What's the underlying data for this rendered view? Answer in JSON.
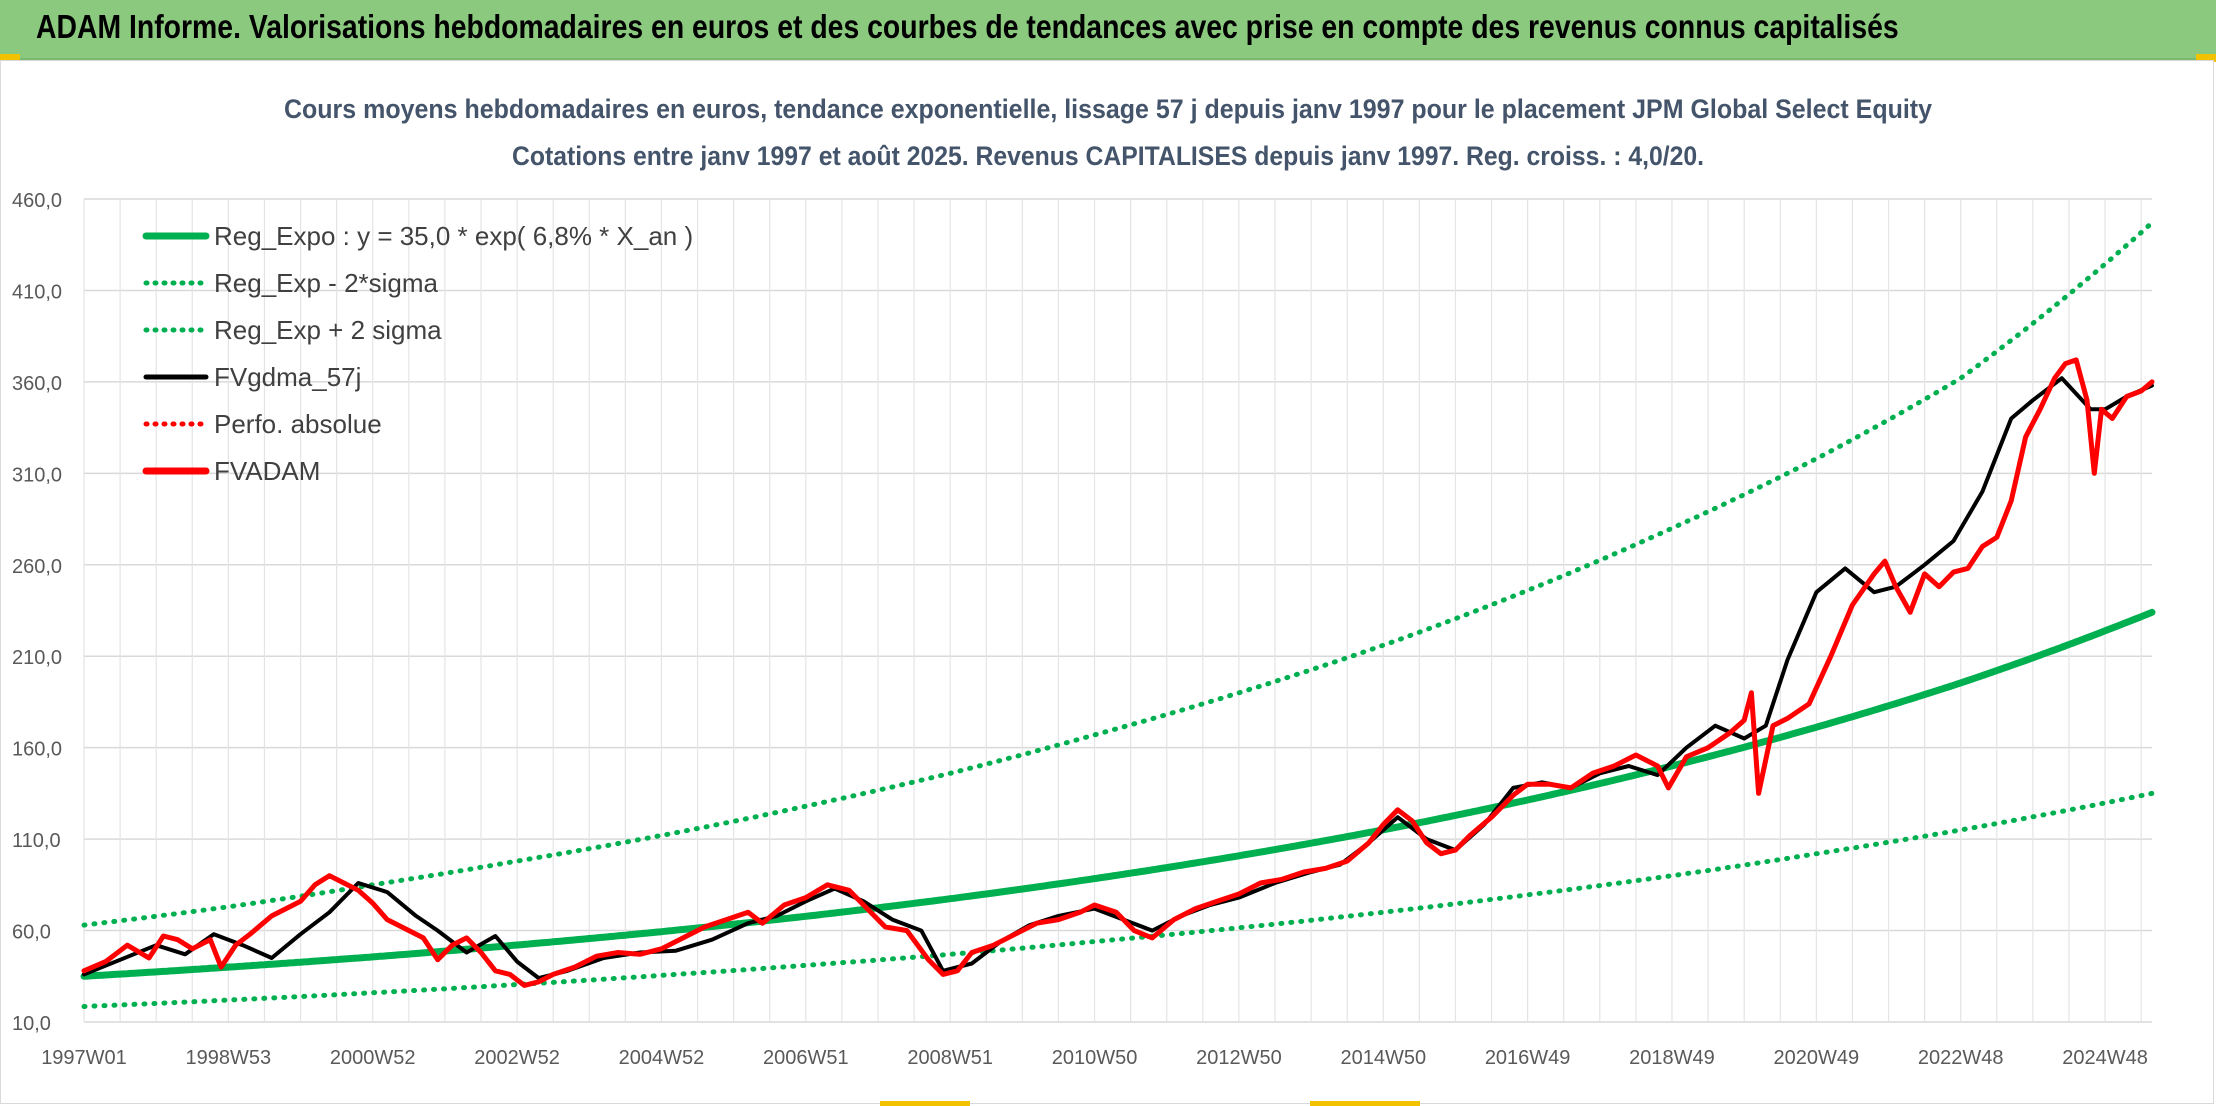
{
  "header": {
    "title": "ADAM Informe. Valorisations hebdomadaires en euros et des courbes de tendances avec prise en compte des revenus connus capitalisés"
  },
  "chart_data": {
    "type": "line",
    "title": "Cours moyens hebdomadaires en euros, tendance exponentielle, lissage 57 j depuis janv 1997 pour le placement JPM Global Select Equity",
    "subtitle": "Cotations entre janv 1997 et août 2025. Revenus CAPITALISES depuis janv 1997. Reg. croiss. : 4,0/20.",
    "xlabel": "",
    "ylabel": "",
    "ylim": [
      10,
      460
    ],
    "xlim": [
      1997.0,
      2025.65
    ],
    "y_ticks": [
      "460,0",
      "410,0",
      "360,0",
      "310,0",
      "260,0",
      "210,0",
      "160,0",
      "110,0",
      "60,0",
      "10,0"
    ],
    "x_ticks": [
      {
        "label": "1997W01",
        "x": 1997.0
      },
      {
        "label": "1998W53",
        "x": 1999.0
      },
      {
        "label": "2000W52",
        "x": 2001.0
      },
      {
        "label": "2002W52",
        "x": 2003.0
      },
      {
        "label": "2004W52",
        "x": 2005.0
      },
      {
        "label": "2006W51",
        "x": 2007.0
      },
      {
        "label": "2008W51",
        "x": 2009.0
      },
      {
        "label": "2010W50",
        "x": 2011.0
      },
      {
        "label": "2012W50",
        "x": 2013.0
      },
      {
        "label": "2014W50",
        "x": 2015.0
      },
      {
        "label": "2016W49",
        "x": 2017.0
      },
      {
        "label": "2018W49",
        "x": 2019.0
      },
      {
        "label": "2020W49",
        "x": 2021.0
      },
      {
        "label": "2022W48",
        "x": 2023.0
      },
      {
        "label": "2024W48",
        "x": 2025.0
      }
    ],
    "grid": true,
    "legend_position": "top-left",
    "series": [
      {
        "name": "Reg_Expo : y = 35,0 * exp( 6,8% *  X_an )",
        "style": "solid-thick",
        "color": "#00b050",
        "x": [
          1997.0,
          1999.0,
          2001.0,
          2003.0,
          2005.0,
          2007.0,
          2009.0,
          2011.0,
          2013.0,
          2015.0,
          2017.0,
          2019.0,
          2021.0,
          2023.0,
          2025.65
        ],
        "y": [
          35.0,
          40.0,
          45.6,
          52.1,
          59.4,
          67.8,
          77.4,
          88.4,
          100.9,
          115.1,
          131.4,
          150.0,
          171.2,
          195.4,
          234.0
        ]
      },
      {
        "name": "Reg_Exp - 2*sigma",
        "style": "dotted",
        "color": "#00b050",
        "x": [
          1997.0,
          1999.0,
          2001.0,
          2003.0,
          2005.0,
          2007.0,
          2009.0,
          2011.0,
          2013.0,
          2015.0,
          2017.0,
          2019.0,
          2021.0,
          2023.0,
          2025.65
        ],
        "y": [
          18.5,
          22.0,
          26.0,
          30.5,
          35.5,
          41.0,
          47.0,
          54.0,
          61.5,
          70.0,
          79.5,
          90.0,
          102.0,
          115.0,
          135.0
        ]
      },
      {
        "name": "Reg_Exp + 2 sigma",
        "style": "dotted",
        "color": "#00b050",
        "x": [
          1997.0,
          1999.0,
          2001.0,
          2003.0,
          2005.0,
          2007.0,
          2009.0,
          2011.0,
          2013.0,
          2015.0,
          2017.0,
          2019.0,
          2021.0,
          2023.0,
          2025.65
        ],
        "y": [
          63.0,
          73.0,
          85.0,
          98.0,
          112.0,
          128.0,
          146.0,
          167.0,
          190.0,
          216.0,
          246.0,
          280.0,
          318.0,
          362.0,
          447.0
        ]
      },
      {
        "name": "FVgdma_57j",
        "style": "solid",
        "color": "#000000",
        "x": [
          1997.0,
          1997.5,
          1998.0,
          1998.4,
          1998.8,
          1999.2,
          1999.6,
          2000.0,
          2000.4,
          2000.8,
          2001.2,
          2001.6,
          2001.9,
          2002.3,
          2002.7,
          2003.0,
          2003.3,
          2003.7,
          2004.2,
          2004.7,
          2005.2,
          2005.7,
          2006.2,
          2006.6,
          2007.0,
          2007.4,
          2007.8,
          2008.2,
          2008.6,
          2008.9,
          2009.3,
          2009.7,
          2010.1,
          2010.5,
          2011.0,
          2011.4,
          2011.8,
          2012.2,
          2012.6,
          2013.0,
          2013.5,
          2014.0,
          2014.4,
          2014.8,
          2015.2,
          2015.6,
          2016.0,
          2016.4,
          2016.8,
          2017.2,
          2017.6,
          2018.0,
          2018.4,
          2018.8,
          2019.2,
          2019.6,
          2020.0,
          2020.3,
          2020.6,
          2021.0,
          2021.4,
          2021.8,
          2022.1,
          2022.5,
          2022.9,
          2023.3,
          2023.7,
          2024.0,
          2024.4,
          2024.8,
          2025.0,
          2025.3,
          2025.65
        ],
        "y": [
          36,
          44,
          52,
          47,
          58,
          52,
          45,
          58,
          70,
          86,
          81,
          68,
          60,
          48,
          57,
          43,
          34,
          38,
          45,
          48,
          49,
          55,
          64,
          68,
          76,
          83,
          76,
          66,
          60,
          38,
          42,
          54,
          63,
          68,
          72,
          66,
          60,
          68,
          74,
          78,
          86,
          92,
          96,
          108,
          122,
          110,
          104,
          118,
          138,
          141,
          138,
          146,
          150,
          145,
          160,
          172,
          165,
          172,
          208,
          245,
          258,
          245,
          248,
          260,
          273,
          300,
          340,
          350,
          362,
          345,
          345,
          352,
          358
        ]
      },
      {
        "name": "Perfo. absolue",
        "style": "dotted",
        "color": "#ff0000",
        "x": [],
        "y": []
      },
      {
        "name": "FVADAM",
        "style": "solid-thick",
        "color": "#ff0000",
        "x": [
          1997.0,
          1997.3,
          1997.6,
          1997.9,
          1998.1,
          1998.3,
          1998.5,
          1998.75,
          1998.9,
          1999.1,
          1999.3,
          1999.6,
          1999.8,
          2000.0,
          2000.2,
          2000.4,
          2000.6,
          2000.8,
          2001.0,
          2001.2,
          2001.4,
          2001.7,
          2001.9,
          2002.1,
          2002.3,
          2002.5,
          2002.7,
          2002.9,
          2003.1,
          2003.3,
          2003.5,
          2003.8,
          2004.1,
          2004.4,
          2004.7,
          2005.0,
          2005.3,
          2005.6,
          2005.9,
          2006.2,
          2006.4,
          2006.7,
          2007.0,
          2007.3,
          2007.6,
          2007.8,
          2008.1,
          2008.4,
          2008.7,
          2008.9,
          2009.1,
          2009.3,
          2009.6,
          2009.9,
          2010.2,
          2010.5,
          2010.8,
          2011.0,
          2011.3,
          2011.55,
          2011.8,
          2012.1,
          2012.4,
          2012.7,
          2013.0,
          2013.3,
          2013.6,
          2013.9,
          2014.2,
          2014.5,
          2014.8,
          2015.0,
          2015.2,
          2015.4,
          2015.6,
          2015.8,
          2016.0,
          2016.2,
          2016.5,
          2016.8,
          2017.0,
          2017.3,
          2017.6,
          2017.9,
          2018.2,
          2018.5,
          2018.8,
          2018.95,
          2019.2,
          2019.5,
          2019.8,
          2020.0,
          2020.1,
          2020.2,
          2020.4,
          2020.6,
          2020.9,
          2021.2,
          2021.5,
          2021.8,
          2021.95,
          2022.1,
          2022.3,
          2022.5,
          2022.7,
          2022.9,
          2023.1,
          2023.3,
          2023.5,
          2023.7,
          2023.9,
          2024.1,
          2024.3,
          2024.45,
          2024.6,
          2024.75,
          2024.85,
          2024.95,
          2025.1,
          2025.3,
          2025.5,
          2025.65
        ],
        "y": [
          38,
          43,
          52,
          45,
          57,
          55,
          50,
          55,
          40,
          52,
          58,
          68,
          72,
          76,
          85,
          90,
          86,
          82,
          75,
          66,
          62,
          56,
          44,
          52,
          56,
          48,
          38,
          36,
          30,
          32,
          36,
          40,
          46,
          48,
          47,
          50,
          56,
          62,
          66,
          70,
          64,
          74,
          78,
          85,
          82,
          74,
          62,
          60,
          44,
          36,
          38,
          48,
          52,
          58,
          64,
          66,
          70,
          74,
          70,
          60,
          56,
          66,
          72,
          76,
          80,
          86,
          88,
          92,
          94,
          98,
          108,
          118,
          126,
          120,
          108,
          102,
          104,
          112,
          122,
          134,
          140,
          140,
          138,
          146,
          150,
          156,
          150,
          138,
          155,
          160,
          168,
          175,
          190,
          135,
          172,
          176,
          184,
          210,
          238,
          255,
          262,
          248,
          234,
          255,
          248,
          256,
          258,
          270,
          275,
          295,
          330,
          345,
          362,
          370,
          372,
          350,
          310,
          345,
          340,
          352,
          355,
          360
        ]
      }
    ]
  }
}
